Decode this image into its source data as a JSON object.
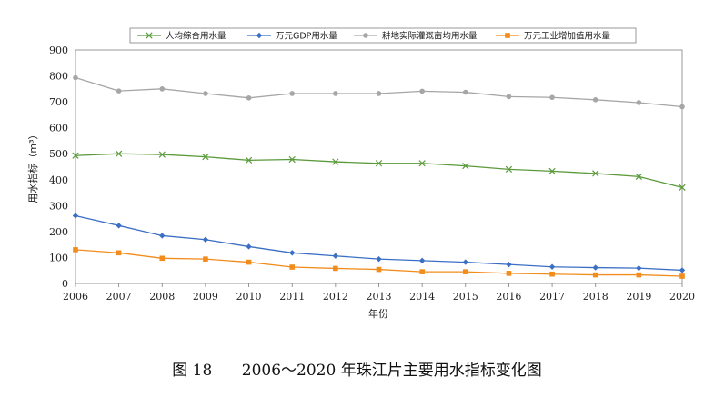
{
  "caption": {
    "figure_no": "图 18",
    "text": "2006～2020 年珠江片主要用水指标变化图"
  },
  "chart_data": {
    "type": "line",
    "x": [
      2006,
      2007,
      2008,
      2009,
      2010,
      2011,
      2012,
      2013,
      2014,
      2015,
      2016,
      2017,
      2018,
      2019,
      2020
    ],
    "xlabel": "年份",
    "ylabel": "用水指标（m³）",
    "ylim": [
      0,
      900
    ],
    "yticks": [
      0,
      100,
      200,
      300,
      400,
      500,
      600,
      700,
      800,
      900
    ],
    "grid": false,
    "legend_position": "top",
    "series": [
      {
        "name": "人均综合用水量",
        "color": "#5a9a3a",
        "marker": "x",
        "values": [
          493,
          500,
          497,
          488,
          475,
          478,
          469,
          463,
          463,
          453,
          440,
          433,
          424,
          412,
          370
        ]
      },
      {
        "name": "万元GDP用水量",
        "color": "#3b6fc4",
        "marker": "diamond",
        "values": [
          261,
          223,
          184,
          169,
          142,
          118,
          106,
          94,
          88,
          82,
          73,
          64,
          61,
          59,
          51
        ]
      },
      {
        "name": "耕地实际灌溉亩均用水量",
        "color": "#a6a6a6",
        "marker": "circle",
        "values": [
          793,
          742,
          750,
          732,
          715,
          732,
          732,
          732,
          741,
          737,
          720,
          717,
          708,
          697,
          681
        ]
      },
      {
        "name": "万元工业增加值用水量",
        "color": "#f28c1c",
        "marker": "square",
        "values": [
          130,
          118,
          97,
          94,
          82,
          63,
          58,
          54,
          45,
          45,
          39,
          36,
          33,
          33,
          28
        ]
      }
    ]
  }
}
